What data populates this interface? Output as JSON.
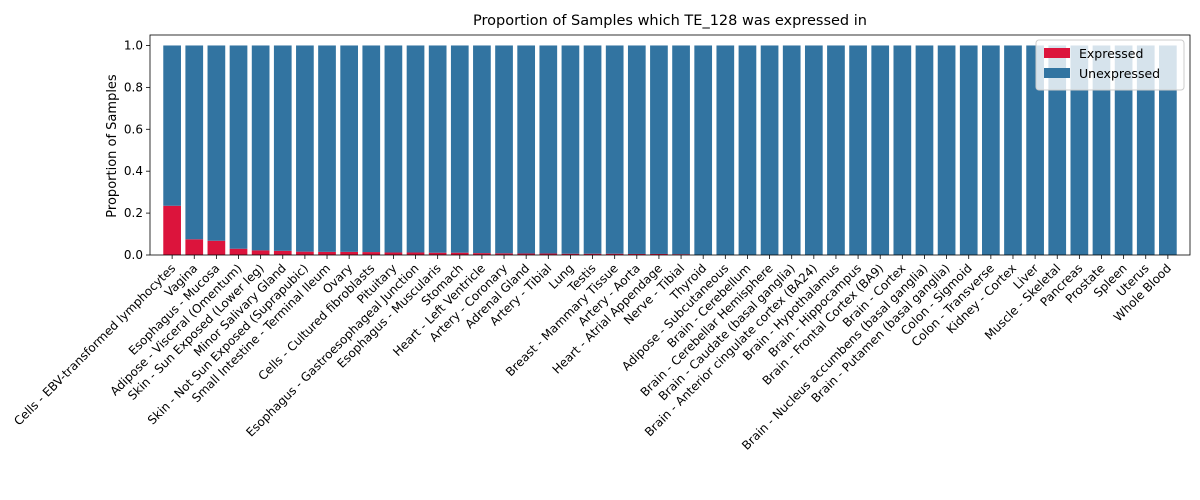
{
  "chart_data": {
    "type": "bar",
    "stacked": true,
    "title": "Proportion of Samples which TE_128 was expressed in",
    "xlabel": "",
    "ylabel": "Proportion of Samples",
    "ylim": [
      0,
      1.05
    ],
    "yticks": [
      0.0,
      0.2,
      0.4,
      0.6,
      0.8,
      1.0
    ],
    "ytick_labels": [
      "0.0",
      "0.2",
      "0.4",
      "0.6",
      "0.8",
      "1.0"
    ],
    "legend_position": "top-right",
    "categories": [
      "Cells - EBV-transformed lymphocytes",
      "Vagina",
      "Esophagus - Mucosa",
      "Adipose - Visceral (Omentum)",
      "Skin - Sun Exposed (Lower leg)",
      "Minor Salivary Gland",
      "Skin - Not Sun Exposed (Suprapubic)",
      "Small Intestine - Terminal Ileum",
      "Ovary",
      "Cells - Cultured fibroblasts",
      "Pituitary",
      "Esophagus - Gastroesophageal Junction",
      "Esophagus - Muscularis",
      "Stomach",
      "Heart - Left Ventricle",
      "Artery - Coronary",
      "Adrenal Gland",
      "Artery - Tibial",
      "Lung",
      "Testis",
      "Breast - Mammary Tissue",
      "Artery - Aorta",
      "Heart - Atrial Appendage",
      "Nerve - Tibial",
      "Thyroid",
      "Adipose - Subcutaneous",
      "Brain - Cerebellum",
      "Brain - Cerebellar Hemisphere",
      "Brain - Caudate (basal ganglia)",
      "Brain - Anterior cingulate cortex (BA24)",
      "Brain - Hypothalamus",
      "Brain - Hippocampus",
      "Brain - Frontal Cortex (BA9)",
      "Brain - Cortex",
      "Brain - Nucleus accumbens (basal ganglia)",
      "Brain - Putamen (basal ganglia)",
      "Colon - Sigmoid",
      "Colon - Transverse",
      "Kidney - Cortex",
      "Liver",
      "Muscle - Skeletal",
      "Pancreas",
      "Prostate",
      "Spleen",
      "Uterus",
      "Whole Blood"
    ],
    "series": [
      {
        "name": "Expressed",
        "color": "#dc143c",
        "values": [
          0.235,
          0.075,
          0.068,
          0.03,
          0.022,
          0.02,
          0.016,
          0.015,
          0.015,
          0.014,
          0.012,
          0.012,
          0.011,
          0.011,
          0.009,
          0.008,
          0.007,
          0.007,
          0.006,
          0.006,
          0.006,
          0.005,
          0.005,
          0.004,
          0,
          0,
          0,
          0,
          0,
          0,
          0,
          0,
          0,
          0,
          0,
          0,
          0,
          0,
          0,
          0,
          0,
          0,
          0,
          0,
          0,
          0
        ]
      },
      {
        "name": "Unexpressed",
        "color": "#3274a1",
        "values": [
          0.765,
          0.925,
          0.932,
          0.97,
          0.978,
          0.98,
          0.984,
          0.985,
          0.985,
          0.986,
          0.988,
          0.988,
          0.989,
          0.989,
          0.991,
          0.992,
          0.993,
          0.993,
          0.994,
          0.994,
          0.994,
          0.995,
          0.995,
          0.996,
          1,
          1,
          1,
          1,
          1,
          1,
          1,
          1,
          1,
          1,
          1,
          1,
          1,
          1,
          1,
          1,
          1,
          1,
          1,
          1,
          1,
          1
        ]
      }
    ]
  }
}
